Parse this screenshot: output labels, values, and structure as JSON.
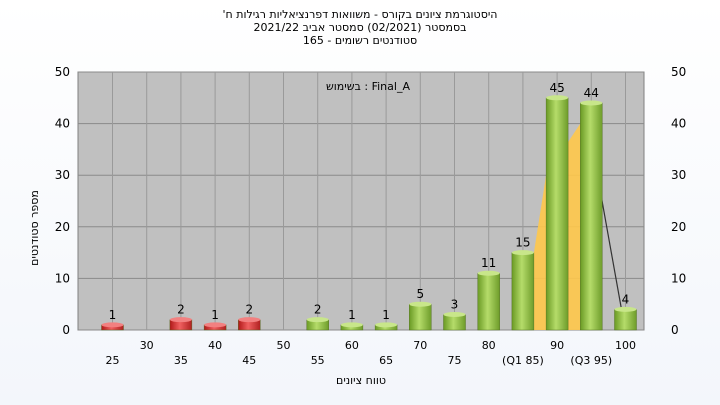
{
  "titles": {
    "line1": "'היסטוגרמת ציונים בקורס - משוואות דפרנציאליות רגילות ח",
    "line2": "בסמסטר  (02/2021)  סמסטר אביב 2021/22",
    "line3": "סטודנטים רשומים - 165"
  },
  "chart_data": {
    "type": "bar",
    "ylabel": "מספר סטודנטים",
    "xlabel": "טווח ציונים",
    "annotation": "בשימוש : Final_A",
    "ylim": [
      0,
      50
    ],
    "yticks": [
      0,
      10,
      20,
      30,
      40,
      50
    ],
    "grid": true,
    "categories": [
      "25",
      "30",
      "35",
      "40",
      "45",
      "50",
      "55",
      "60",
      "65",
      "70",
      "75",
      "80",
      "85",
      "90",
      "95",
      "100"
    ],
    "category_labels": [
      "25",
      "30",
      "35",
      "40",
      "45",
      "50",
      "55",
      "60",
      "65",
      "70",
      "75",
      "80",
      "(Q1 85)",
      "90",
      "(Q3 95)",
      "100"
    ],
    "values": [
      1,
      0,
      2,
      1,
      2,
      0,
      2,
      1,
      1,
      5,
      3,
      11,
      15,
      45,
      44,
      4
    ],
    "bar_colors": [
      "red",
      "red",
      "red",
      "red",
      "red",
      "green",
      "green",
      "green",
      "green",
      "green",
      "green",
      "green",
      "green",
      "green",
      "green",
      "green"
    ],
    "colors": {
      "plot_bg": "#c0c0c0",
      "red_bar": "#e03030",
      "green_bar": "#8fc040",
      "iqr_fill": "#ffc84a",
      "median_line": "#333333"
    }
  }
}
